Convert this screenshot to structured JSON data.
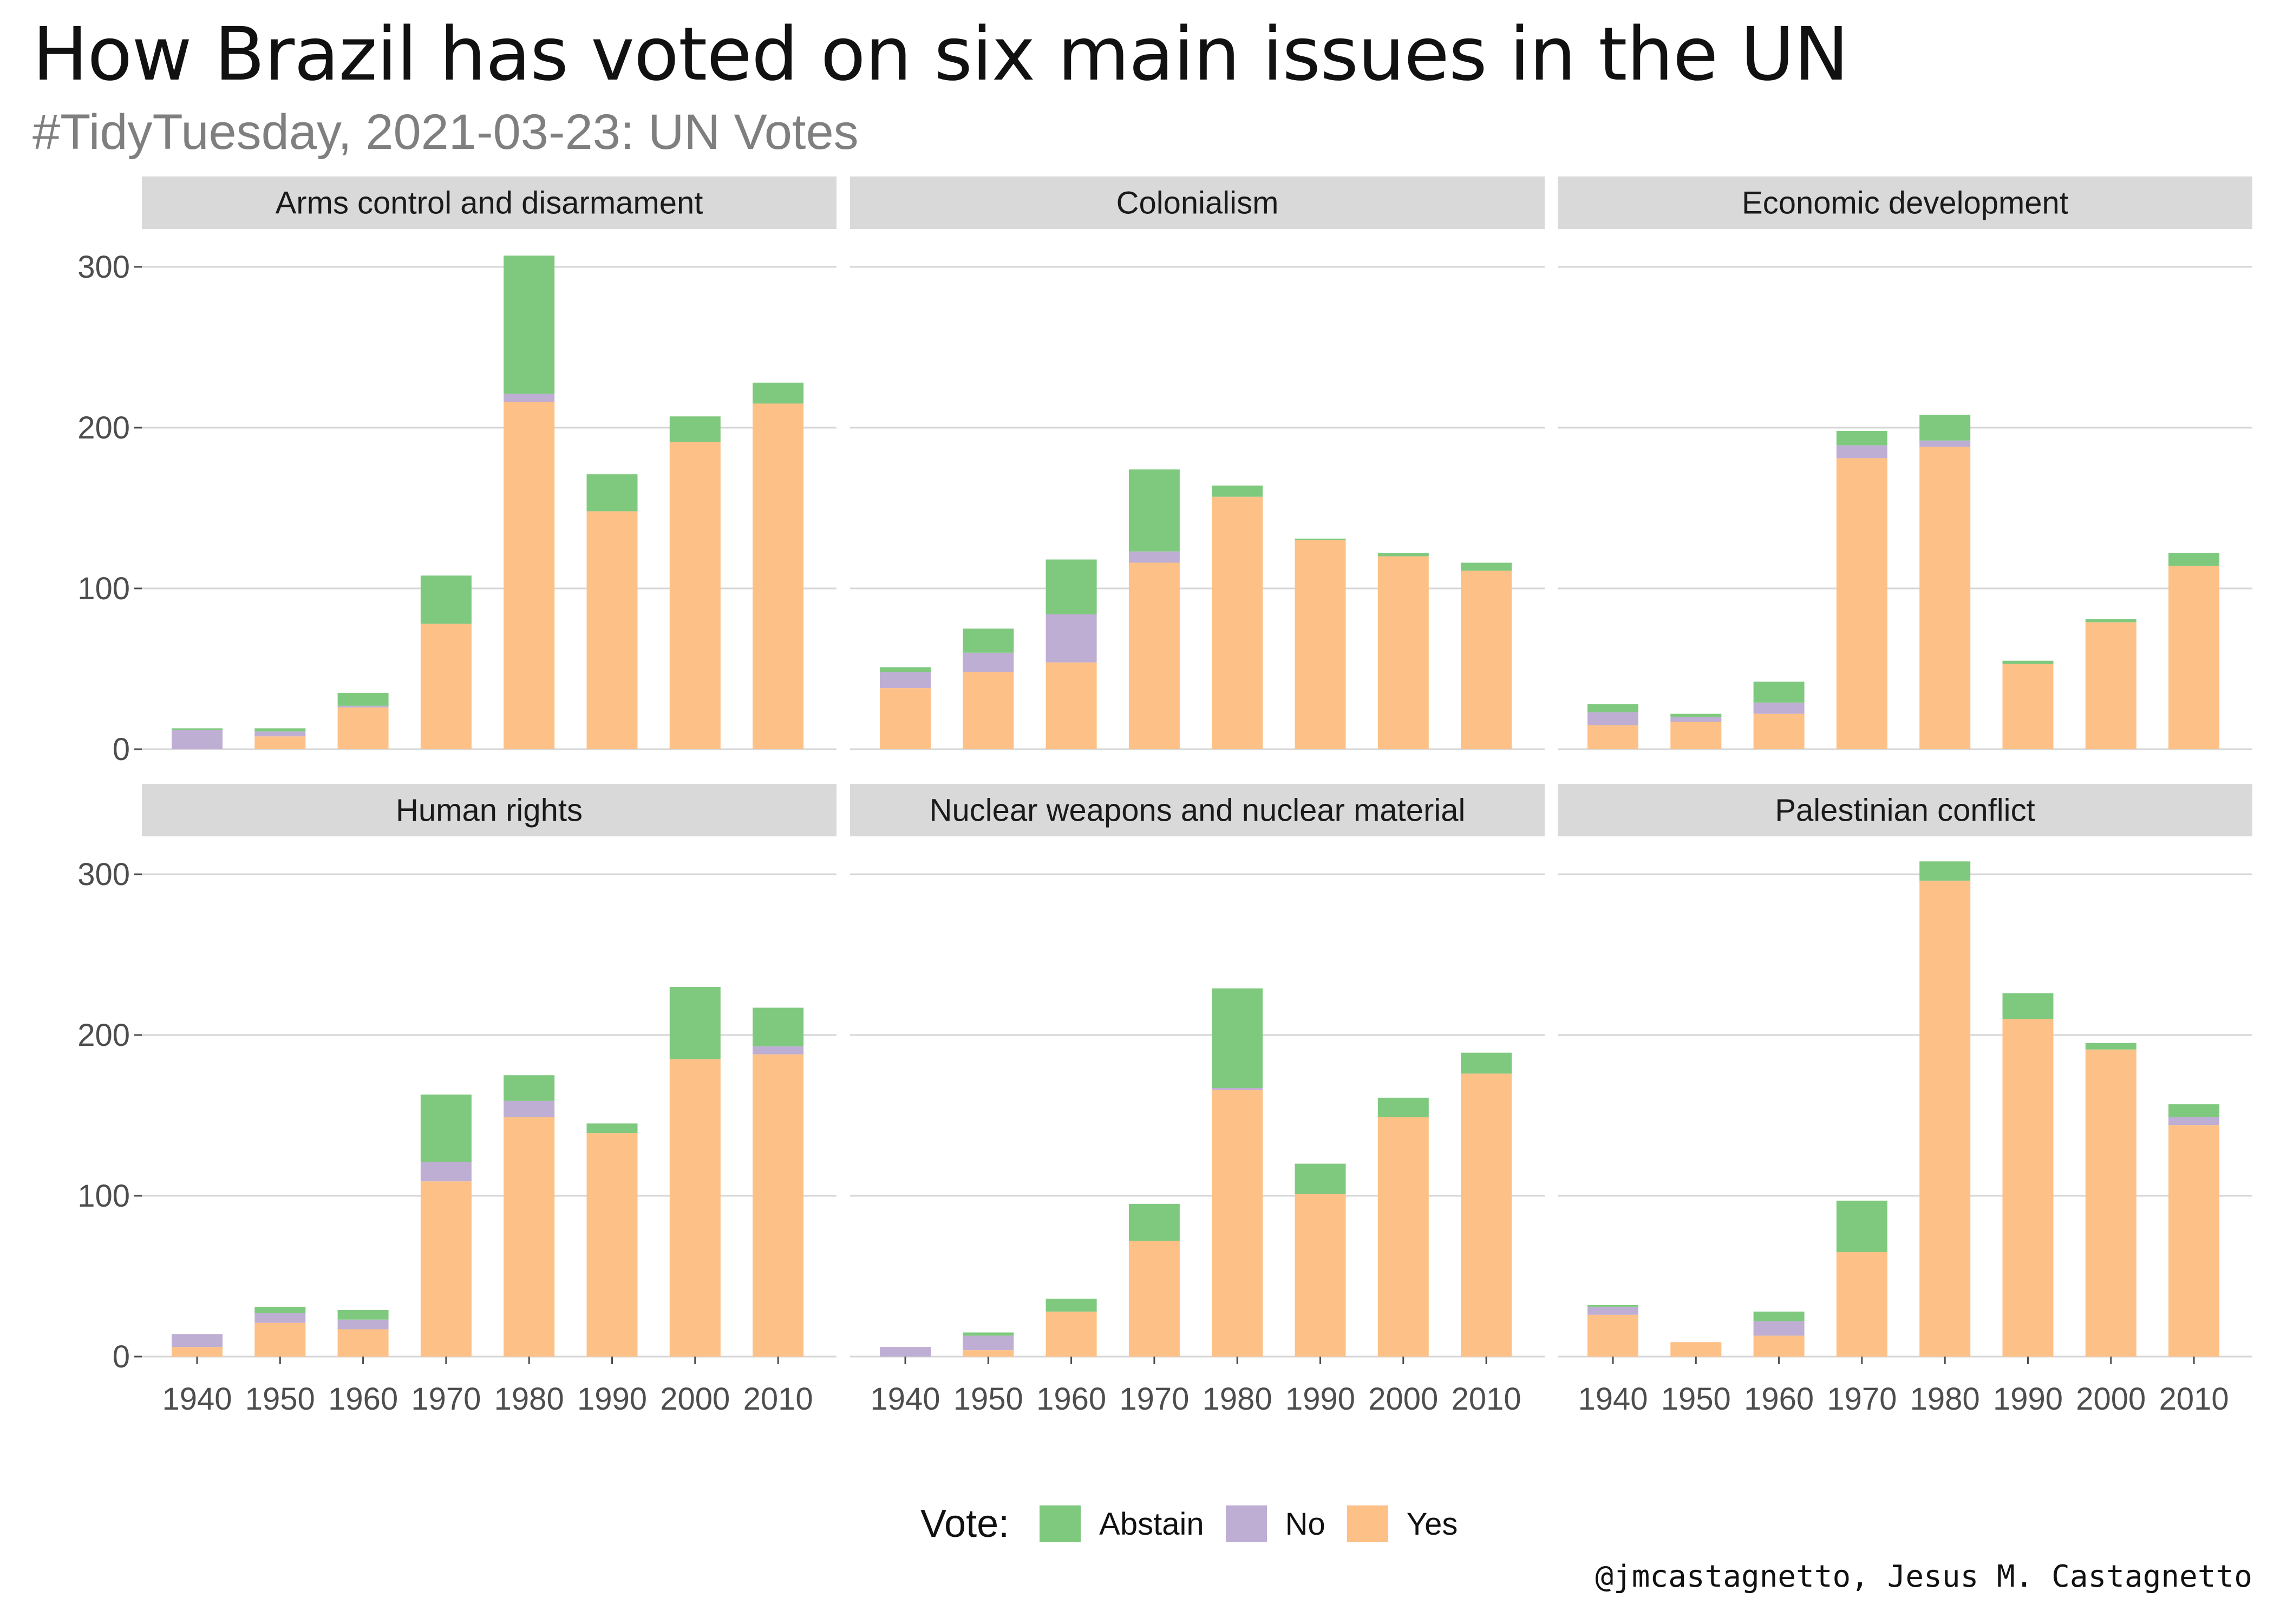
{
  "title": "How Brazil has voted on six main issues in the UN",
  "subtitle": "#TidyTuesday, 2021-03-23: UN Votes",
  "caption": "@jmcastagnetto, Jesus M. Castagnetto",
  "legend": {
    "title": "Vote:",
    "items": [
      {
        "label": "Abstain",
        "color": "#7fc97f"
      },
      {
        "label": "No",
        "color": "#beaed4"
      },
      {
        "label": "Yes",
        "color": "#fdc086"
      }
    ]
  },
  "chart_data": {
    "type": "bar",
    "stacked": true,
    "categories": [
      "1940",
      "1950",
      "1960",
      "1970",
      "1980",
      "1990",
      "2000",
      "2010"
    ],
    "y_ticks": [
      0,
      100,
      200,
      300
    ],
    "ylim": [
      0,
      310
    ],
    "grid": true,
    "legend_position": "bottom",
    "series_order": [
      "Abstain",
      "No",
      "Yes"
    ],
    "facets": [
      {
        "name": "Arms control and disarmament",
        "series": [
          {
            "name": "Yes",
            "values": [
              0,
              8,
              26,
              78,
              216,
              148,
              191,
              215
            ]
          },
          {
            "name": "No",
            "values": [
              12,
              3,
              1,
              0,
              5,
              0,
              0,
              0
            ]
          },
          {
            "name": "Abstain",
            "values": [
              1,
              2,
              8,
              30,
              86,
              23,
              16,
              13
            ]
          }
        ]
      },
      {
        "name": "Colonialism",
        "series": [
          {
            "name": "Yes",
            "values": [
              38,
              48,
              54,
              116,
              157,
              130,
              120,
              111
            ]
          },
          {
            "name": "No",
            "values": [
              10,
              12,
              30,
              7,
              0,
              0,
              0,
              0
            ]
          },
          {
            "name": "Abstain",
            "values": [
              3,
              15,
              34,
              51,
              7,
              1,
              2,
              5
            ]
          }
        ]
      },
      {
        "name": "Economic development",
        "series": [
          {
            "name": "Yes",
            "values": [
              15,
              17,
              22,
              181,
              188,
              53,
              79,
              114
            ]
          },
          {
            "name": "No",
            "values": [
              8,
              3,
              7,
              8,
              4,
              0,
              0,
              0
            ]
          },
          {
            "name": "Abstain",
            "values": [
              5,
              2,
              13,
              9,
              16,
              2,
              2,
              8
            ]
          }
        ]
      },
      {
        "name": "Human rights",
        "series": [
          {
            "name": "Yes",
            "values": [
              6,
              21,
              17,
              109,
              149,
              139,
              185,
              188
            ]
          },
          {
            "name": "No",
            "values": [
              8,
              6,
              6,
              12,
              10,
              0,
              0,
              5
            ]
          },
          {
            "name": "Abstain",
            "values": [
              0,
              4,
              6,
              42,
              16,
              6,
              45,
              24
            ]
          }
        ]
      },
      {
        "name": "Nuclear weapons and nuclear material",
        "series": [
          {
            "name": "Yes",
            "values": [
              0,
              4,
              28,
              72,
              166,
              101,
              149,
              176
            ]
          },
          {
            "name": "No",
            "values": [
              6,
              9,
              0,
              0,
              1,
              0,
              0,
              0
            ]
          },
          {
            "name": "Abstain",
            "values": [
              0,
              2,
              8,
              23,
              62,
              19,
              12,
              13
            ]
          }
        ]
      },
      {
        "name": "Palestinian conflict",
        "series": [
          {
            "name": "Yes",
            "values": [
              26,
              9,
              13,
              65,
              296,
              210,
              191,
              144
            ]
          },
          {
            "name": "No",
            "values": [
              5,
              0,
              9,
              0,
              0,
              0,
              0,
              5
            ]
          },
          {
            "name": "Abstain",
            "values": [
              1,
              0,
              6,
              32,
              12,
              16,
              4,
              8
            ]
          }
        ]
      }
    ]
  }
}
